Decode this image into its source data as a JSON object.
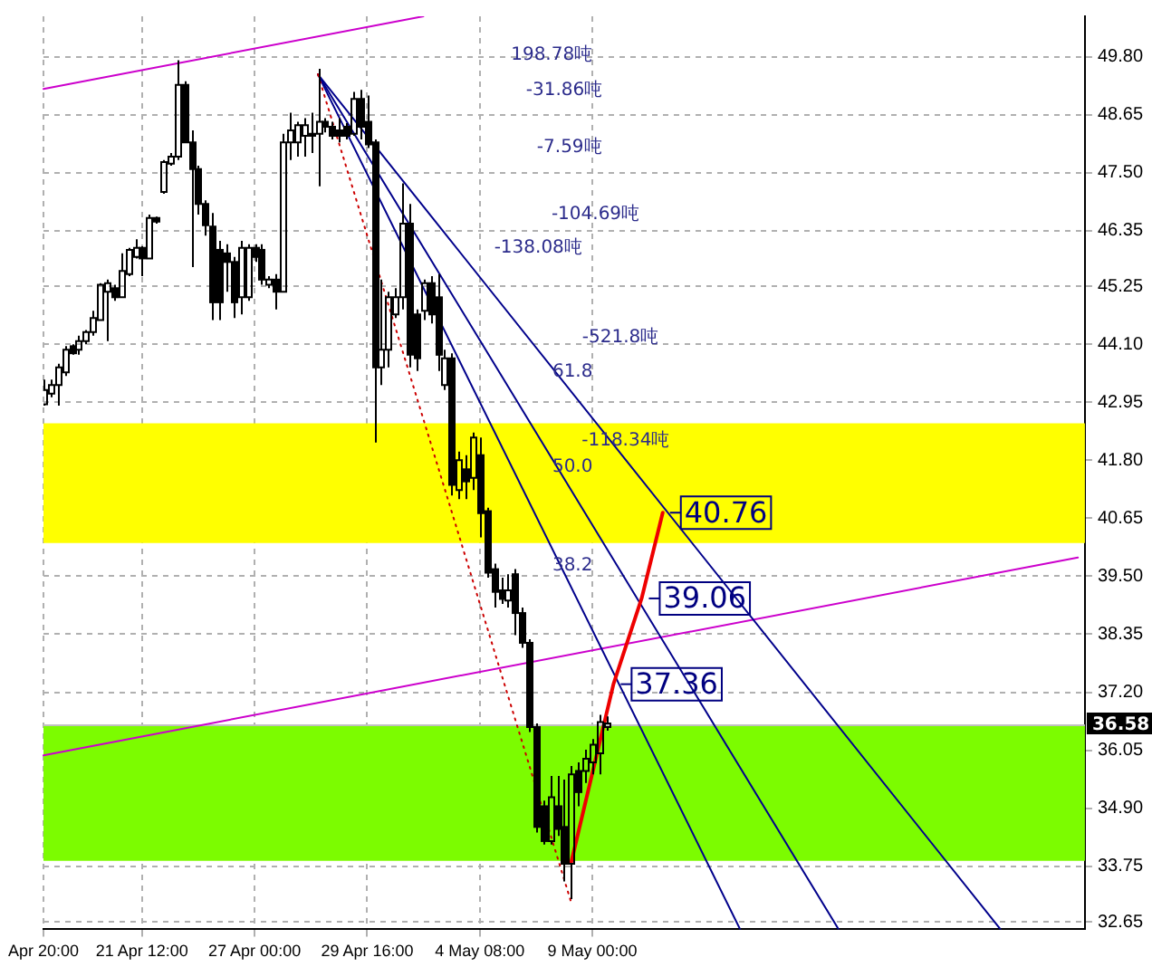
{
  "chart_data": {
    "type": "candlestick",
    "categories": [
      "Apr 20:00",
      null,
      null,
      null,
      null,
      null,
      null,
      null,
      null,
      null,
      null,
      null,
      null,
      null,
      "21 Apr 12:00",
      null,
      null,
      null,
      null,
      null,
      null,
      null,
      null,
      null,
      null,
      null,
      null,
      null,
      null,
      null,
      "27 Apr 00:00",
      null,
      null,
      null,
      null,
      null,
      null,
      null,
      null,
      null,
      null,
      null,
      null,
      null,
      null,
      null,
      "29 Apr 16:00",
      null,
      null,
      null,
      null,
      null,
      null,
      null,
      null,
      null,
      null,
      null,
      null,
      null,
      null,
      null,
      "4 May 08:00",
      null,
      null,
      null,
      null,
      null,
      null,
      null,
      null,
      null,
      null,
      null,
      null,
      null,
      null,
      null,
      "9 May 00:00",
      null,
      null,
      null,
      null,
      null,
      null,
      null,
      null,
      null,
      null,
      null,
      null,
      null,
      null,
      null,
      null,
      null,
      null,
      null,
      null,
      null,
      null,
      null,
      null,
      null,
      null,
      null,
      null,
      null,
      null,
      null,
      null,
      null,
      null,
      null,
      null,
      null,
      null,
      null,
      null,
      null,
      null,
      null,
      null,
      null,
      null,
      null,
      null,
      null,
      null,
      null,
      null,
      null,
      null,
      null,
      null,
      null,
      null,
      null,
      null,
      null,
      null,
      null,
      null,
      null,
      null,
      null,
      null,
      null,
      null
    ],
    "ohlc": [
      [
        42.91,
        43.4,
        42.88,
        43.19
      ],
      [
        43.12,
        43.4,
        43.05,
        43.29
      ],
      [
        43.29,
        43.71,
        42.88,
        43.64
      ],
      [
        43.54,
        44.06,
        43.47,
        43.99
      ],
      [
        44.06,
        44.1,
        43.89,
        43.92
      ],
      [
        43.99,
        44.27,
        43.89,
        44.16
      ],
      [
        44.16,
        44.38,
        44.1,
        44.34
      ],
      [
        44.34,
        44.76,
        44.27,
        44.62
      ],
      [
        44.58,
        45.31,
        44.58,
        45.28
      ],
      [
        45.14,
        45.38,
        44.16,
        45.31
      ],
      [
        45.21,
        45.28,
        44.96,
        45.03
      ],
      [
        45.03,
        45.9,
        45.03,
        45.55
      ],
      [
        45.49,
        46.01,
        45.45,
        45.97
      ],
      [
        45.83,
        46.18,
        45.8,
        46.01
      ],
      [
        46.01,
        46.04,
        45.45,
        45.8
      ],
      [
        45.8,
        46.67,
        45.8,
        46.6
      ],
      [
        46.6,
        46.63,
        46.49,
        46.53
      ],
      [
        47.12,
        47.75,
        47.08,
        47.71
      ],
      [
        47.68,
        47.89,
        47.64,
        47.82
      ],
      [
        47.82,
        49.73,
        47.75,
        49.24
      ],
      [
        49.24,
        49.31,
        48.1,
        48.1
      ],
      [
        48.1,
        48.34,
        45.63,
        47.57
      ],
      [
        47.57,
        47.64,
        46.67,
        46.88
      ],
      [
        46.88,
        46.95,
        46.25,
        46.46
      ],
      [
        46.43,
        46.7,
        44.58,
        44.93
      ],
      [
        45.97,
        46.15,
        44.58,
        44.93
      ],
      [
        45.9,
        46.08,
        45.14,
        45.73
      ],
      [
        45.73,
        45.83,
        44.62,
        44.93
      ],
      [
        45.03,
        46.15,
        44.69,
        46.01
      ],
      [
        45.03,
        46.08,
        44.96,
        46.01
      ],
      [
        46.01,
        46.08,
        45.73,
        45.83
      ],
      [
        45.97,
        46.08,
        45.28,
        45.38
      ],
      [
        45.28,
        45.45,
        45.21,
        45.38
      ],
      [
        45.38,
        45.49,
        44.79,
        45.14
      ],
      [
        45.14,
        48.27,
        45.14,
        48.1
      ],
      [
        48.1,
        48.69,
        47.75,
        48.34
      ],
      [
        48.1,
        48.51,
        47.82,
        48.44
      ],
      [
        48.23,
        48.58,
        47.82,
        48.44
      ],
      [
        48.27,
        48.69,
        47.89,
        48.23
      ],
      [
        48.27,
        49.56,
        47.23,
        48.51
      ],
      [
        48.51,
        48.58,
        48.3,
        48.41
      ],
      [
        48.41,
        48.51,
        48.16,
        48.23
      ],
      [
        48.34,
        48.58,
        48.1,
        48.23
      ],
      [
        48.41,
        48.48,
        48.16,
        48.23
      ],
      [
        48.27,
        49.1,
        48.23,
        48.96
      ],
      [
        48.96,
        49.14,
        48.16,
        48.41
      ],
      [
        48.51,
        49.03,
        47.99,
        48.06
      ],
      [
        48.1,
        48.16,
        42.15,
        43.64
      ],
      [
        43.64,
        45.38,
        43.29,
        43.99
      ],
      [
        43.99,
        45.14,
        43.64,
        45.03
      ],
      [
        44.69,
        45.21,
        44.62,
        45.03
      ],
      [
        45.03,
        47.29,
        44.79,
        46.49
      ],
      [
        46.49,
        46.88,
        43.64,
        43.89
      ],
      [
        44.69,
        44.79,
        43.57,
        43.82
      ],
      [
        44.76,
        45.38,
        44.58,
        45.31
      ],
      [
        45.31,
        45.45,
        44.51,
        44.69
      ],
      [
        45.03,
        45.49,
        43.57,
        43.89
      ],
      [
        43.29,
        43.99,
        43.19,
        43.82
      ],
      [
        43.82,
        43.92,
        41.1,
        41.31
      ],
      [
        41.21,
        41.97,
        41.03,
        41.8
      ],
      [
        41.62,
        41.9,
        41.03,
        41.38
      ],
      [
        41.45,
        42.35,
        41.21,
        42.25
      ],
      [
        41.9,
        42.25,
        40.27,
        40.75
      ],
      [
        40.79,
        40.86,
        39.47,
        39.57
      ],
      [
        39.64,
        39.75,
        38.88,
        39.19
      ],
      [
        39.22,
        39.47,
        38.95,
        39.05
      ],
      [
        39.02,
        39.54,
        38.88,
        39.22
      ],
      [
        39.54,
        39.64,
        38.33,
        38.77
      ],
      [
        38.77,
        38.88,
        38.08,
        38.18
      ],
      [
        38.18,
        38.25,
        36.41,
        36.51
      ],
      [
        36.51,
        36.58,
        34.42,
        34.53
      ],
      [
        34.94,
        35.05,
        34.18,
        34.25
      ],
      [
        34.25,
        35.54,
        34.18,
        35.12
      ],
      [
        34.94,
        35.54,
        34.35,
        34.49
      ],
      [
        34.53,
        35.47,
        33.45,
        33.8
      ],
      [
        33.8,
        35.74,
        33.1,
        35.57
      ],
      [
        35.64,
        35.81,
        34.94,
        35.22
      ],
      [
        35.64,
        36.06,
        35.4,
        35.88
      ],
      [
        35.81,
        36.27,
        35.57,
        36.16
      ],
      [
        35.99,
        36.75,
        35.57,
        36.61
      ],
      [
        36.51,
        36.72,
        36.44,
        36.58
      ],
      null,
      null,
      null,
      null,
      null,
      null,
      null,
      null,
      null,
      null,
      null,
      null,
      null,
      null,
      null,
      null,
      null,
      null,
      null,
      null,
      null,
      null,
      null,
      null,
      null,
      null,
      null,
      null,
      null,
      null,
      null,
      null,
      null,
      null,
      null,
      null,
      null,
      null,
      null,
      null,
      null,
      null,
      null,
      null,
      null,
      null,
      null,
      null,
      null,
      null,
      null,
      null,
      null,
      null,
      null,
      null,
      null,
      null,
      null,
      null,
      null,
      null,
      null,
      null,
      null,
      null,
      null,
      null
    ],
    "series": [
      {
        "type": "line",
        "color": "#cc00cc",
        "values": [
          49.16,
          null,
          null,
          null,
          null,
          null,
          null,
          null,
          null,
          null,
          null,
          null,
          null,
          null,
          null,
          null,
          null,
          null,
          null,
          null,
          null,
          null,
          null,
          null,
          null,
          null,
          null,
          null,
          null,
          null,
          null,
          null,
          null,
          null,
          null,
          null,
          null,
          null,
          null,
          null,
          null,
          null,
          null,
          null,
          null,
          null,
          null,
          null,
          null,
          null,
          null,
          null,
          null,
          null,
          50.6,
          null,
          null,
          null,
          null,
          null,
          null,
          null,
          null,
          null,
          null,
          null,
          null,
          null,
          null,
          null,
          null,
          null,
          null,
          null,
          null,
          null,
          null,
          null,
          null,
          null,
          null,
          null,
          null,
          null,
          null,
          null,
          null,
          null,
          null,
          null,
          null,
          null,
          null,
          null,
          null,
          null,
          null,
          null,
          null,
          null,
          null,
          null,
          null,
          null,
          null,
          null,
          null,
          null,
          null,
          null,
          null,
          null,
          null,
          null,
          null,
          null,
          null,
          null,
          null,
          null,
          null,
          null,
          null,
          null,
          null,
          null,
          null,
          null,
          null,
          null,
          null,
          null,
          null,
          null,
          null,
          null,
          null,
          null,
          null,
          null,
          null,
          null,
          null,
          null,
          null,
          null,
          null,
          null,
          null
        ]
      },
      {
        "type": "line",
        "color": "#cc00cc",
        "values": [
          35.95,
          null,
          null,
          null,
          null,
          null,
          null,
          null,
          null,
          null,
          null,
          null,
          null,
          null,
          null,
          null,
          null,
          null,
          null,
          null,
          null,
          null,
          null,
          null,
          null,
          null,
          null,
          null,
          null,
          null,
          null,
          null,
          null,
          null,
          null,
          null,
          null,
          null,
          null,
          null,
          null,
          null,
          null,
          null,
          null,
          null,
          null,
          null,
          null,
          null,
          null,
          null,
          null,
          null,
          null,
          null,
          null,
          null,
          null,
          null,
          null,
          null,
          null,
          null,
          null,
          null,
          null,
          null,
          null,
          null,
          null,
          null,
          null,
          null,
          null,
          null,
          null,
          null,
          null,
          null,
          null,
          null,
          null,
          null,
          null,
          null,
          null,
          null,
          null,
          null,
          null,
          null,
          null,
          null,
          null,
          null,
          null,
          null,
          null,
          null,
          null,
          null,
          null,
          null,
          null,
          null,
          null,
          null,
          null,
          null,
          null,
          null,
          null,
          null,
          null,
          null,
          null,
          null,
          null,
          null,
          null,
          null,
          null,
          null,
          null,
          null,
          null,
          null,
          null,
          null,
          null,
          null,
          null,
          null,
          null,
          null,
          null,
          null,
          null,
          null,
          null,
          null,
          null,
          null,
          null,
          null,
          null,
          39.87,
          null
        ]
      },
      {
        "type": "line",
        "color": "#00008b",
        "values": [
          null,
          null,
          null,
          null,
          null,
          null,
          null,
          null,
          null,
          null,
          null,
          null,
          null,
          null,
          null,
          null,
          null,
          null,
          null,
          null,
          null,
          null,
          null,
          null,
          null,
          null,
          null,
          null,
          null,
          null,
          null,
          null,
          null,
          null,
          null,
          null,
          null,
          null,
          null,
          49.45,
          null,
          null,
          null,
          null,
          null,
          null,
          null,
          null,
          null,
          null,
          null,
          null,
          null,
          null,
          null,
          null,
          null,
          null,
          null,
          null,
          null,
          null,
          null,
          null,
          null,
          null,
          null,
          null,
          null,
          null,
          null,
          null,
          null,
          null,
          null,
          null,
          null,
          null,
          null,
          null,
          null,
          null,
          null,
          null,
          null,
          null,
          null,
          null,
          null,
          null,
          null,
          null,
          null,
          null,
          null,
          null,
          null,
          null,
          null,
          null,
          null,
          null,
          null,
          null,
          null,
          null,
          null,
          null,
          null,
          null,
          null,
          null,
          null,
          null,
          null,
          null,
          null,
          null,
          null,
          null,
          null,
          null,
          null,
          null,
          null,
          null,
          null,
          null,
          null,
          null,
          null,
          null,
          null,
          null,
          null,
          null,
          32.5,
          null,
          null,
          null,
          null,
          null,
          null,
          null,
          null,
          null,
          null,
          null,
          null
        ]
      },
      {
        "type": "line",
        "color": "#00008b",
        "values": [
          null,
          null,
          null,
          null,
          null,
          null,
          null,
          null,
          null,
          null,
          null,
          null,
          null,
          null,
          null,
          null,
          null,
          null,
          null,
          null,
          null,
          null,
          null,
          null,
          null,
          null,
          null,
          null,
          null,
          null,
          null,
          null,
          null,
          null,
          null,
          null,
          null,
          null,
          null,
          49.45,
          null,
          null,
          null,
          null,
          null,
          null,
          null,
          null,
          null,
          null,
          null,
          null,
          null,
          null,
          null,
          null,
          null,
          null,
          null,
          null,
          null,
          null,
          null,
          null,
          null,
          null,
          null,
          null,
          null,
          null,
          null,
          null,
          null,
          null,
          null,
          null,
          null,
          null,
          null,
          null,
          null,
          null,
          null,
          null,
          null,
          null,
          null,
          null,
          null,
          null,
          null,
          null,
          null,
          null,
          null,
          null,
          null,
          null,
          null,
          null,
          null,
          null,
          null,
          null,
          null,
          null,
          null,
          null,
          null,
          null,
          null,
          null,
          null,
          32.5,
          null,
          null,
          null,
          null,
          null,
          null,
          null,
          null,
          null,
          null,
          null,
          null,
          null,
          null,
          null,
          null,
          null,
          null,
          null,
          null,
          null,
          null,
          null,
          null,
          null,
          null,
          null,
          null,
          null,
          null,
          null,
          null,
          null,
          null,
          null
        ]
      },
      {
        "type": "line",
        "color": "#00008b",
        "values": [
          null,
          null,
          null,
          null,
          null,
          null,
          null,
          null,
          null,
          null,
          null,
          null,
          null,
          null,
          null,
          null,
          null,
          null,
          null,
          null,
          null,
          null,
          null,
          null,
          null,
          null,
          null,
          null,
          null,
          null,
          null,
          null,
          null,
          null,
          null,
          null,
          null,
          null,
          null,
          49.45,
          null,
          null,
          null,
          null,
          null,
          null,
          null,
          null,
          null,
          null,
          null,
          null,
          null,
          null,
          null,
          null,
          null,
          null,
          null,
          null,
          null,
          null,
          null,
          null,
          null,
          null,
          null,
          null,
          null,
          null,
          null,
          null,
          null,
          null,
          null,
          null,
          null,
          null,
          null,
          null,
          null,
          null,
          null,
          null,
          null,
          null,
          null,
          null,
          null,
          null,
          null,
          null,
          null,
          null,
          null,
          null,
          null,
          null,
          null,
          32.5,
          null,
          null,
          null,
          null,
          null,
          null,
          null,
          null,
          null,
          null,
          null,
          null,
          null,
          null,
          null,
          null,
          null,
          null,
          null,
          null,
          null,
          null,
          null,
          null,
          null,
          null,
          null,
          null,
          null,
          null,
          null,
          null,
          null,
          null,
          null,
          null,
          null,
          null,
          null,
          null,
          null,
          null,
          null,
          null,
          null,
          null,
          null,
          null,
          null
        ]
      },
      {
        "type": "line",
        "color": "#cc0000",
        "line_style": "dotted",
        "values": [
          null,
          null,
          null,
          null,
          null,
          null,
          null,
          null,
          null,
          null,
          null,
          null,
          null,
          null,
          null,
          null,
          null,
          null,
          null,
          null,
          null,
          null,
          null,
          null,
          null,
          null,
          null,
          null,
          null,
          null,
          null,
          null,
          null,
          null,
          null,
          null,
          null,
          null,
          null,
          49.45,
          null,
          null,
          null,
          null,
          null,
          null,
          null,
          null,
          null,
          null,
          null,
          null,
          null,
          null,
          null,
          null,
          null,
          null,
          null,
          null,
          null,
          null,
          null,
          null,
          null,
          null,
          null,
          null,
          null,
          null,
          null,
          null,
          null,
          null,
          null,
          33.03,
          null,
          null,
          null,
          null,
          null,
          null,
          null,
          null,
          null,
          null,
          null,
          null,
          null,
          null,
          null,
          null,
          null,
          null,
          null,
          null,
          null,
          null,
          null,
          null,
          null,
          null,
          null,
          null,
          null,
          null,
          null,
          null,
          null,
          null,
          null,
          null,
          null,
          null,
          null,
          null,
          null,
          null,
          null,
          null,
          null,
          null,
          null,
          null,
          null,
          null,
          null,
          null,
          null,
          null,
          null,
          null,
          null,
          null,
          null,
          null,
          null,
          null,
          null,
          null,
          null,
          null,
          null,
          null,
          null,
          null,
          null,
          null,
          null
        ]
      },
      {
        "type": "line",
        "color": "#ee0000",
        "values": [
          null,
          null,
          null,
          null,
          null,
          null,
          null,
          null,
          null,
          null,
          null,
          null,
          null,
          null,
          null,
          null,
          null,
          null,
          null,
          null,
          null,
          null,
          null,
          null,
          null,
          null,
          null,
          null,
          null,
          null,
          null,
          null,
          null,
          null,
          null,
          null,
          null,
          null,
          null,
          null,
          null,
          null,
          null,
          null,
          null,
          null,
          null,
          null,
          null,
          null,
          null,
          null,
          null,
          null,
          null,
          null,
          null,
          null,
          null,
          null,
          null,
          null,
          null,
          null,
          null,
          null,
          null,
          null,
          null,
          null,
          null,
          null,
          null,
          null,
          null,
          33.83,
          null,
          null,
          null,
          null,
          null,
          37.36,
          null,
          null,
          null,
          39.06,
          null,
          null,
          40.76,
          null,
          null,
          null,
          null,
          null,
          null,
          null,
          null,
          null,
          null,
          null,
          null,
          null,
          null,
          null,
          null,
          null,
          null,
          null,
          null,
          null,
          null,
          null,
          null,
          null,
          null,
          null,
          null,
          null,
          null,
          null,
          null,
          null,
          null,
          null,
          null,
          null,
          null,
          null,
          null,
          null,
          null,
          null,
          null,
          null,
          null,
          null,
          null,
          null,
          null,
          null,
          null,
          null,
          null,
          null,
          null,
          null,
          null,
          null,
          null
        ],
        "value_labels": [
          null,
          null,
          null,
          null,
          null,
          null,
          null,
          null,
          null,
          null,
          null,
          null,
          null,
          null,
          null,
          null,
          null,
          null,
          null,
          null,
          null,
          null,
          null,
          null,
          null,
          null,
          null,
          null,
          null,
          null,
          null,
          null,
          null,
          null,
          null,
          null,
          null,
          null,
          null,
          null,
          null,
          null,
          null,
          null,
          null,
          null,
          null,
          null,
          null,
          null,
          null,
          null,
          null,
          null,
          null,
          null,
          null,
          null,
          null,
          null,
          null,
          null,
          null,
          null,
          null,
          null,
          null,
          null,
          null,
          null,
          null,
          null,
          null,
          null,
          null,
          null,
          null,
          null,
          null,
          null,
          null,
          "37.36",
          null,
          null,
          null,
          "39.06",
          null,
          null,
          "40.76",
          null,
          null,
          null,
          null,
          null,
          null,
          null,
          null,
          null,
          null,
          null,
          null,
          null,
          null,
          null,
          null,
          null,
          null,
          null,
          null,
          null,
          null,
          null,
          null,
          null,
          null,
          null,
          null,
          null,
          null,
          null,
          null,
          null,
          null,
          null,
          null,
          null,
          null,
          null,
          null,
          null,
          null,
          null,
          null,
          null,
          null,
          null,
          null,
          null,
          null,
          null,
          null,
          null,
          null,
          null,
          null,
          null,
          null,
          null,
          null
        ]
      }
    ],
    "ylim": [
      32.5,
      50.6
    ],
    "yticks": [
      {
        "value": 49.8,
        "label": "49.80"
      },
      {
        "value": 48.65,
        "label": "48.65"
      },
      {
        "value": 47.5,
        "label": "47.50"
      },
      {
        "value": 46.35,
        "label": "46.35"
      },
      {
        "value": 45.25,
        "label": "45.25"
      },
      {
        "value": 44.1,
        "label": "44.10"
      },
      {
        "value": 42.95,
        "label": "42.95"
      },
      {
        "value": 41.8,
        "label": "41.80"
      },
      {
        "value": 40.65,
        "label": "40.65"
      },
      {
        "value": 39.5,
        "label": "39.50"
      },
      {
        "value": 38.35,
        "label": "38.35"
      },
      {
        "value": 37.2,
        "label": "37.20"
      },
      {
        "value": 36.05,
        "label": "36.05"
      },
      {
        "value": 34.9,
        "label": "34.90"
      },
      {
        "value": 33.75,
        "label": "33.75"
      },
      {
        "value": 32.65,
        "label": "32.65"
      }
    ],
    "grid": true,
    "bands": [
      {
        "axis": "y",
        "from": 40.16,
        "to": 42.53,
        "color": "#ffff00"
      },
      {
        "axis": "y",
        "from": 33.86,
        "to": 36.54,
        "color": "#7cfc00"
      }
    ],
    "ref_lines": [
      {
        "axis": "y",
        "value": 36.58,
        "label": "36.58",
        "color": "#c0c0c0"
      }
    ],
    "annotations": [
      "198.78吨",
      "-31.86吨",
      "-7.59吨",
      "-104.69吨",
      "-138.08吨",
      "-521.8吨",
      "-118.34吨",
      "61.8",
      "50.0",
      "38.2"
    ]
  }
}
